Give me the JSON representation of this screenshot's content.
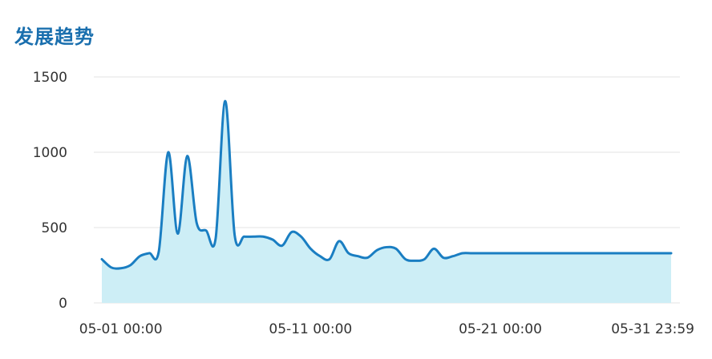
{
  "chart_data": {
    "type": "area",
    "title": "发展趋势",
    "xlabel": "",
    "ylabel": "",
    "ylim": [
      0,
      1500
    ],
    "y_ticks": [
      "0",
      "500",
      "1000",
      "1500"
    ],
    "x_tick_labels": [
      "05-01 00:00",
      "05-11 00:00",
      "05-21 00:00",
      "05-31 23:59"
    ],
    "grid": true,
    "legend": "none",
    "colors": {
      "line": "#1a7ec2",
      "fill": "#cdeef6",
      "grid": "#e3e3e3",
      "title": "#1a6fae"
    },
    "series": [
      {
        "x": [
          "04-30 00:00",
          "04-30 12:00",
          "05-01 00:00",
          "05-01 12:00",
          "05-02 00:00",
          "05-02 12:00",
          "05-03 00:00",
          "05-03 12:00",
          "05-04 00:00",
          "05-04 12:00",
          "05-05 00:00",
          "05-05 12:00",
          "05-06 00:00",
          "05-06 12:00",
          "05-07 00:00",
          "05-07 12:00",
          "05-08 00:00",
          "05-08 12:00",
          "05-09 00:00",
          "05-09 12:00",
          "05-10 00:00",
          "05-10 12:00",
          "05-11 00:00",
          "05-11 12:00",
          "05-12 00:00",
          "05-12 12:00",
          "05-13 00:00",
          "05-13 12:00",
          "05-14 00:00",
          "05-14 12:00",
          "05-15 00:00",
          "05-15 12:00",
          "05-16 00:00",
          "05-16 12:00",
          "05-17 00:00",
          "05-17 12:00",
          "05-18 00:00",
          "05-18 12:00",
          "05-19 00:00",
          "05-19 12:00",
          "05-20 00:00",
          "05-20 12:00",
          "05-21 00:00",
          "05-21 12:00",
          "05-22 00:00",
          "05-22 12:00",
          "05-23 00:00",
          "05-23 12:00",
          "05-24 00:00",
          "05-24 12:00",
          "05-25 00:00",
          "05-25 12:00",
          "05-26 00:00",
          "05-26 12:00",
          "05-27 00:00",
          "05-27 12:00",
          "05-28 00:00",
          "05-28 12:00",
          "05-29 00:00",
          "05-29 12:00",
          "05-30 00:00"
        ],
        "values": [
          290,
          235,
          230,
          250,
          310,
          330,
          340,
          1000,
          460,
          975,
          530,
          480,
          430,
          1340,
          450,
          440,
          440,
          440,
          420,
          380,
          470,
          440,
          360,
          310,
          290,
          410,
          330,
          310,
          300,
          350,
          370,
          360,
          290,
          280,
          290,
          360,
          300,
          310,
          330,
          330,
          330,
          330,
          330,
          330,
          330,
          330,
          330,
          330,
          330,
          330,
          330,
          330,
          330,
          330,
          330,
          330,
          330,
          330,
          330,
          330,
          330
        ]
      }
    ]
  }
}
